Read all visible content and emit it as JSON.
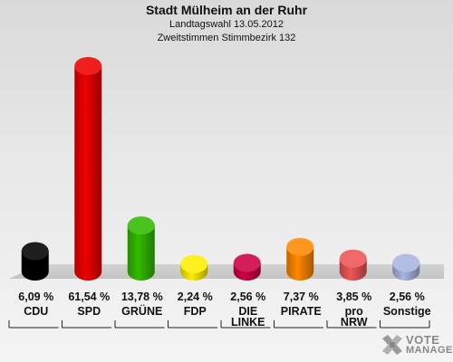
{
  "header": {
    "title": "Stadt Mülheim an der Ruhr",
    "subtitle1": "Landtagswahl 13.05.2012",
    "subtitle2": "Zweitstimmen Stimmbezirk 132"
  },
  "chart_data": {
    "type": "bar",
    "categories": [
      {
        "line1": "CDU",
        "line2": ""
      },
      {
        "line1": "SPD",
        "line2": ""
      },
      {
        "line1": "GRÜNE",
        "line2": ""
      },
      {
        "line1": "FDP",
        "line2": ""
      },
      {
        "line1": "DIE",
        "line2": "LINKE"
      },
      {
        "line1": "PIRATE",
        "line2": ""
      },
      {
        "line1": "pro",
        "line2": "NRW"
      },
      {
        "line1": "Sonstige",
        "line2": ""
      }
    ],
    "values": [
      6.09,
      61.54,
      13.78,
      2.24,
      2.56,
      7.37,
      3.85,
      2.56
    ],
    "value_labels": [
      "6,09 %",
      "61,54 %",
      "13,78 %",
      "2,24 %",
      "2,56 %",
      "7,37 %",
      "3,85 %",
      "2,56 %"
    ],
    "colors": [
      "#000000",
      "#ee0000",
      "#33bb00",
      "#ffee00",
      "#cc0044",
      "#ff8800",
      "#ee5555",
      "#aab4e0"
    ],
    "ylim": [
      0,
      61.54
    ]
  },
  "logo": {
    "line1": "VOTE",
    "line2": "MANAGER"
  }
}
